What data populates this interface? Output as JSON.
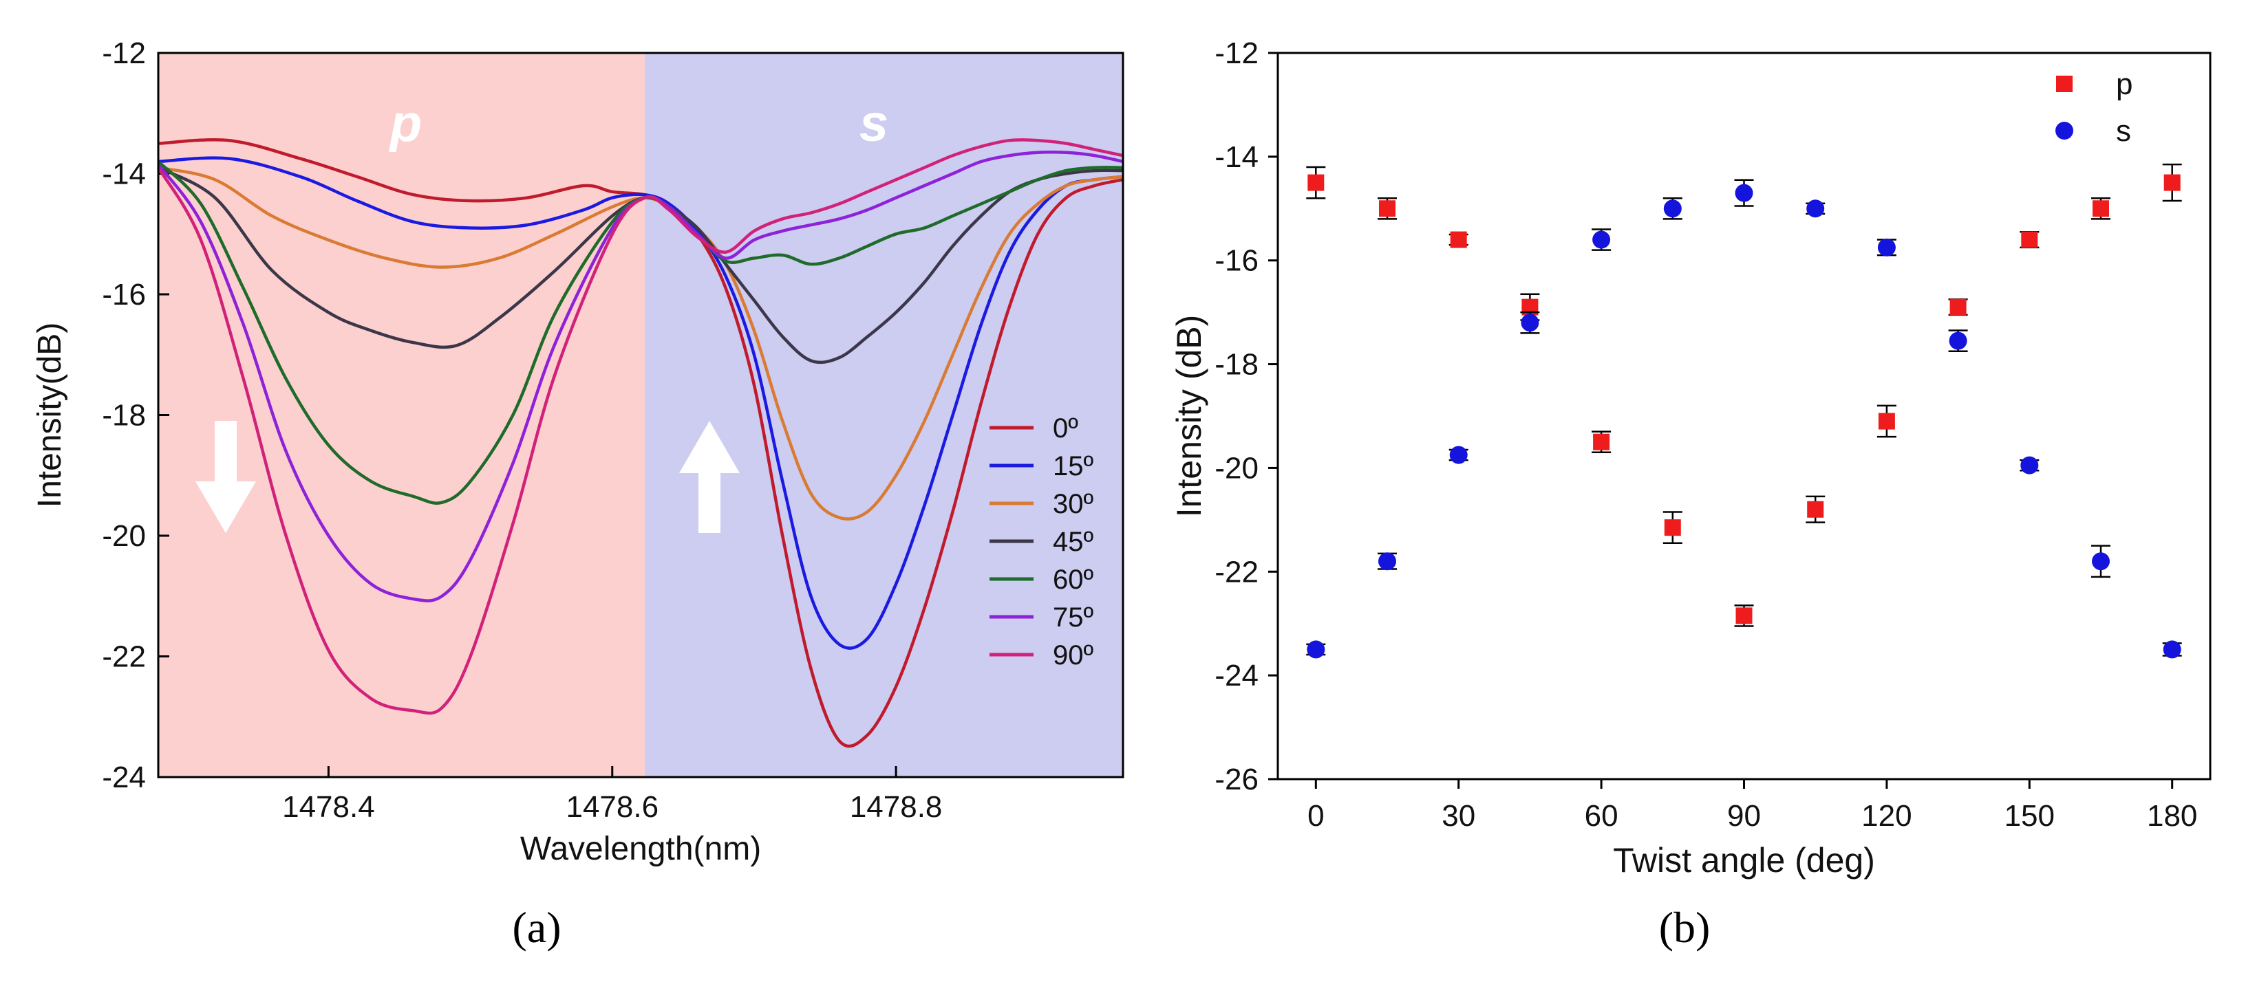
{
  "chart_data": [
    {
      "panel": "(a)",
      "type": "line",
      "title": "",
      "xlabel": "Wavelength(nm)",
      "ylabel": "Intensity(dB)",
      "xlim": [
        1478.28,
        1478.96
      ],
      "ylim": [
        -24,
        -12
      ],
      "xticks": [
        1478.4,
        1478.6,
        1478.8
      ],
      "xtick_labels": [
        "1478.4",
        "1478.6",
        "1478.8"
      ],
      "yticks": [
        -24,
        -22,
        -20,
        -18,
        -16,
        -14,
        -12
      ],
      "ytick_labels": [
        "-24",
        "-22",
        "-20",
        "-18",
        "-16",
        "-14",
        "-12"
      ],
      "regions": [
        {
          "label": "p",
          "x_from": 1478.28,
          "x_to": 1478.623,
          "color": "#fdd0d0",
          "arrow": "down"
        },
        {
          "label": "s",
          "x_from": 1478.623,
          "x_to": 1478.96,
          "color": "#cdccf1",
          "arrow": "up"
        }
      ],
      "legend": "lower-right",
      "series": [
        {
          "name": "0º",
          "color": "#c01b2d",
          "x": [
            1478.28,
            1478.33,
            1478.38,
            1478.42,
            1478.46,
            1478.5,
            1478.54,
            1478.58,
            1478.6,
            1478.623,
            1478.64,
            1478.66,
            1478.68,
            1478.7,
            1478.72,
            1478.74,
            1478.76,
            1478.78,
            1478.8,
            1478.82,
            1478.84,
            1478.86,
            1478.88,
            1478.9,
            1478.92,
            1478.94,
            1478.96
          ],
          "y": [
            -13.5,
            -13.45,
            -13.75,
            -14.05,
            -14.35,
            -14.45,
            -14.4,
            -14.2,
            -14.3,
            -14.35,
            -14.5,
            -15.0,
            -15.9,
            -17.5,
            -20.0,
            -22.2,
            -23.4,
            -23.3,
            -22.5,
            -21.2,
            -19.6,
            -17.8,
            -16.2,
            -15.0,
            -14.4,
            -14.2,
            -14.1
          ]
        },
        {
          "name": "15º",
          "color": "#1a1ae0",
          "x": [
            1478.28,
            1478.33,
            1478.38,
            1478.42,
            1478.46,
            1478.5,
            1478.54,
            1478.58,
            1478.6,
            1478.623,
            1478.64,
            1478.66,
            1478.68,
            1478.7,
            1478.72,
            1478.74,
            1478.76,
            1478.78,
            1478.8,
            1478.82,
            1478.84,
            1478.86,
            1478.88,
            1478.9,
            1478.92,
            1478.94,
            1478.96
          ],
          "y": [
            -13.8,
            -13.75,
            -14.05,
            -14.45,
            -14.8,
            -14.9,
            -14.85,
            -14.6,
            -14.4,
            -14.35,
            -14.5,
            -14.95,
            -15.7,
            -17.0,
            -19.1,
            -21.0,
            -21.8,
            -21.7,
            -20.8,
            -19.5,
            -18.0,
            -16.5,
            -15.3,
            -14.6,
            -14.2,
            -14.1,
            -14.05
          ]
        },
        {
          "name": "30º",
          "color": "#d97b33",
          "x": [
            1478.28,
            1478.32,
            1478.36,
            1478.4,
            1478.44,
            1478.48,
            1478.52,
            1478.56,
            1478.6,
            1478.623,
            1478.64,
            1478.66,
            1478.68,
            1478.7,
            1478.72,
            1478.74,
            1478.76,
            1478.78,
            1478.8,
            1478.82,
            1478.84,
            1478.86,
            1478.88,
            1478.9,
            1478.92,
            1478.94,
            1478.96
          ],
          "y": [
            -13.9,
            -14.1,
            -14.7,
            -15.1,
            -15.4,
            -15.55,
            -15.4,
            -15.0,
            -14.55,
            -14.4,
            -14.55,
            -14.9,
            -15.5,
            -16.6,
            -18.1,
            -19.3,
            -19.7,
            -19.6,
            -19.0,
            -18.1,
            -17.0,
            -15.9,
            -15.0,
            -14.5,
            -14.2,
            -14.1,
            -14.05
          ]
        },
        {
          "name": "45º",
          "color": "#3c3748",
          "x": [
            1478.28,
            1478.32,
            1478.36,
            1478.4,
            1478.43,
            1478.46,
            1478.49,
            1478.52,
            1478.56,
            1478.6,
            1478.623,
            1478.64,
            1478.66,
            1478.68,
            1478.7,
            1478.72,
            1478.74,
            1478.76,
            1478.78,
            1478.8,
            1478.82,
            1478.84,
            1478.86,
            1478.88,
            1478.9,
            1478.92,
            1478.94,
            1478.96
          ],
          "y": [
            -13.9,
            -14.4,
            -15.6,
            -16.3,
            -16.6,
            -16.8,
            -16.85,
            -16.4,
            -15.6,
            -14.7,
            -14.4,
            -14.55,
            -14.9,
            -15.5,
            -16.1,
            -16.7,
            -17.1,
            -17.05,
            -16.7,
            -16.3,
            -15.8,
            -15.2,
            -14.7,
            -14.3,
            -14.1,
            -14.0,
            -13.95,
            -13.95
          ]
        },
        {
          "name": "60º",
          "color": "#1e6b2a",
          "x": [
            1478.28,
            1478.31,
            1478.34,
            1478.37,
            1478.4,
            1478.43,
            1478.46,
            1478.48,
            1478.5,
            1478.53,
            1478.56,
            1478.6,
            1478.623,
            1478.64,
            1478.66,
            1478.68,
            1478.7,
            1478.72,
            1478.74,
            1478.76,
            1478.78,
            1478.8,
            1478.82,
            1478.84,
            1478.86,
            1478.88,
            1478.9,
            1478.92,
            1478.94,
            1478.96
          ],
          "y": [
            -13.8,
            -14.5,
            -15.9,
            -17.4,
            -18.5,
            -19.1,
            -19.35,
            -19.45,
            -19.1,
            -18.0,
            -16.3,
            -14.8,
            -14.4,
            -14.55,
            -15.0,
            -15.45,
            -15.4,
            -15.35,
            -15.5,
            -15.4,
            -15.2,
            -15.0,
            -14.9,
            -14.7,
            -14.5,
            -14.3,
            -14.1,
            -13.95,
            -13.9,
            -13.9
          ]
        },
        {
          "name": "75º",
          "color": "#8d22d8",
          "x": [
            1478.28,
            1478.31,
            1478.34,
            1478.37,
            1478.4,
            1478.43,
            1478.46,
            1478.48,
            1478.5,
            1478.53,
            1478.56,
            1478.6,
            1478.623,
            1478.64,
            1478.66,
            1478.68,
            1478.7,
            1478.72,
            1478.74,
            1478.76,
            1478.78,
            1478.8,
            1478.82,
            1478.84,
            1478.86,
            1478.88,
            1478.9,
            1478.92,
            1478.94,
            1478.96
          ],
          "y": [
            -13.85,
            -14.8,
            -16.5,
            -18.6,
            -20.0,
            -20.8,
            -21.05,
            -21.0,
            -20.4,
            -18.8,
            -16.8,
            -14.9,
            -14.4,
            -14.55,
            -15.0,
            -15.4,
            -15.1,
            -14.95,
            -14.85,
            -14.75,
            -14.6,
            -14.4,
            -14.2,
            -14.0,
            -13.8,
            -13.7,
            -13.65,
            -13.65,
            -13.7,
            -13.8
          ]
        },
        {
          "name": "90º",
          "color": "#d1227a",
          "x": [
            1478.28,
            1478.31,
            1478.34,
            1478.37,
            1478.4,
            1478.43,
            1478.46,
            1478.48,
            1478.5,
            1478.53,
            1478.56,
            1478.6,
            1478.623,
            1478.64,
            1478.66,
            1478.68,
            1478.7,
            1478.72,
            1478.74,
            1478.76,
            1478.78,
            1478.8,
            1478.82,
            1478.84,
            1478.86,
            1478.88,
            1478.9,
            1478.92,
            1478.94,
            1478.96
          ],
          "y": [
            -13.9,
            -15.1,
            -17.4,
            -20.0,
            -21.9,
            -22.7,
            -22.9,
            -22.85,
            -22.0,
            -19.8,
            -17.3,
            -15.0,
            -14.4,
            -14.6,
            -15.05,
            -15.3,
            -14.95,
            -14.75,
            -14.65,
            -14.5,
            -14.3,
            -14.1,
            -13.9,
            -13.7,
            -13.55,
            -13.45,
            -13.45,
            -13.5,
            -13.6,
            -13.7
          ]
        }
      ]
    },
    {
      "panel": "(b)",
      "type": "scatter",
      "title": "",
      "xlabel": "Twist angle (deg)",
      "ylabel": "Intensity (dB)",
      "xlim": [
        -8,
        188
      ],
      "ylim": [
        -26,
        -12
      ],
      "xticks": [
        0,
        30,
        60,
        90,
        120,
        150,
        180
      ],
      "xtick_labels": [
        "0",
        "30",
        "60",
        "90",
        "120",
        "150",
        "180"
      ],
      "yticks": [
        -26,
        -24,
        -22,
        -20,
        -18,
        -16,
        -14,
        -12
      ],
      "ytick_labels": [
        "-26",
        "-24",
        "-22",
        "-20",
        "-18",
        "-16",
        "-14",
        "-12"
      ],
      "legend": "top-right",
      "series": [
        {
          "name": "p",
          "marker": "square",
          "color": "#ee1c1c",
          "x": [
            0,
            15,
            30,
            45,
            60,
            75,
            90,
            105,
            120,
            135,
            150,
            165,
            180
          ],
          "y": [
            -14.5,
            -15.0,
            -15.6,
            -16.9,
            -19.5,
            -21.15,
            -22.85,
            -20.8,
            -19.1,
            -16.9,
            -15.6,
            -15.0,
            -14.5
          ],
          "err": [
            0.3,
            0.2,
            0.1,
            0.25,
            0.2,
            0.3,
            0.2,
            0.25,
            0.3,
            0.15,
            0.15,
            0.2,
            0.35
          ]
        },
        {
          "name": "s",
          "marker": "circle",
          "color": "#1414dd",
          "x": [
            0,
            15,
            30,
            45,
            60,
            75,
            90,
            105,
            120,
            135,
            150,
            165,
            180
          ],
          "y": [
            -23.5,
            -21.8,
            -19.75,
            -17.2,
            -15.6,
            -15.0,
            -14.7,
            -15.0,
            -15.75,
            -17.55,
            -19.95,
            -21.8,
            -23.5
          ],
          "err": [
            0.1,
            0.15,
            0.1,
            0.2,
            0.2,
            0.2,
            0.25,
            0.1,
            0.15,
            0.2,
            0.1,
            0.3,
            0.12
          ]
        }
      ]
    }
  ],
  "captions": {
    "a": "(a)",
    "b": "(b)"
  }
}
